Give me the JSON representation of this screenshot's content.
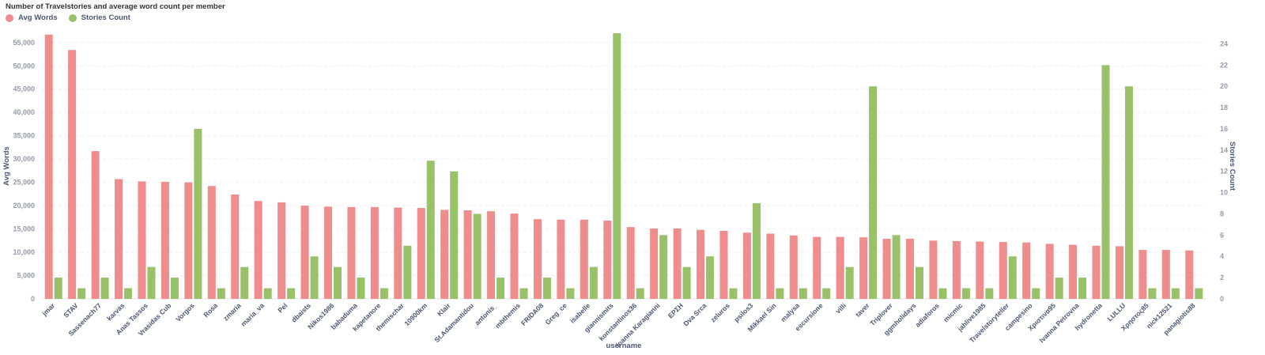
{
  "chart_data": {
    "type": "bar",
    "title": "Number of Travelstories and average word count per member",
    "xlabel": "username",
    "ylabel": "Avg Words",
    "y2label": "Stories Count",
    "ylim": [
      0,
      57000
    ],
    "y2lim": [
      0,
      25
    ],
    "yticks": [
      0,
      5000,
      10000,
      15000,
      20000,
      25000,
      30000,
      35000,
      40000,
      45000,
      50000,
      55000
    ],
    "ytick_labels": [
      "0",
      "5,000",
      "10,000",
      "15,000",
      "20,000",
      "25,000",
      "30,000",
      "35,000",
      "40,000",
      "45,000",
      "50,000",
      "55,000"
    ],
    "y2ticks": [
      0,
      2,
      4,
      6,
      8,
      10,
      12,
      14,
      16,
      18,
      20,
      22,
      24
    ],
    "grid": true,
    "legend_position": "top-left",
    "categories": [
      "jmar",
      "STAV",
      "Sassenach77",
      "karvas",
      "Anas Tassos",
      "Vrasidas Cub",
      "Vorgos",
      "Rosa",
      "zmaria",
      "maria_va",
      "Pel",
      "dbaists",
      "Nikos1986",
      "babaduma",
      "kapetanore",
      "themischar",
      "10900km",
      "Klair",
      "St.Adamantidou",
      "_antonis_",
      "mbthemis",
      "FRIDA08",
      "Greg_ce",
      "isabelle",
      "giannismits",
      "konstantinos36",
      "Ioanna Karagianni",
      "ΕΡΣΗ",
      "Dva Srca",
      "zeluros",
      "psilos3",
      "Mikkael Sin",
      "malysa",
      "escursione",
      "villi",
      "taver",
      "Triplover",
      "ggmholidays",
      "adiaforos",
      "micmic",
      "jahlive1985",
      "Travelstoryteller",
      "campesino",
      "Χριστινα95",
      "Ivanna Petrovna",
      "hydronetta",
      "LULLU",
      "Χρηστος85",
      "nick12521",
      "panagiotis88"
    ],
    "series": [
      {
        "name": "Avg Words",
        "axis": "left",
        "color": "#ef8c8c",
        "values": [
          56700,
          53400,
          31700,
          25700,
          25200,
          25100,
          25000,
          24200,
          22400,
          21000,
          20700,
          20000,
          19800,
          19700,
          19700,
          19600,
          19500,
          19100,
          19000,
          18800,
          18300,
          17100,
          17000,
          17000,
          16800,
          15400,
          15100,
          15100,
          14800,
          14600,
          14200,
          14000,
          13600,
          13300,
          13300,
          13200,
          12900,
          12900,
          12500,
          12400,
          12300,
          12200,
          12100,
          11800,
          11600,
          11400,
          11300,
          10500,
          10500,
          10400
        ]
      },
      {
        "name": "Stories Count",
        "axis": "right",
        "color": "#98c169",
        "values": [
          2,
          1,
          2,
          1,
          3,
          2,
          16,
          1,
          3,
          1,
          1,
          4,
          3,
          2,
          1,
          5,
          13,
          12,
          8,
          2,
          1,
          2,
          1,
          3,
          25,
          1,
          6,
          3,
          4,
          1,
          9,
          1,
          1,
          1,
          3,
          20,
          6,
          3,
          1,
          1,
          1,
          4,
          1,
          2,
          2,
          22,
          20,
          1,
          1,
          1
        ]
      }
    ]
  }
}
